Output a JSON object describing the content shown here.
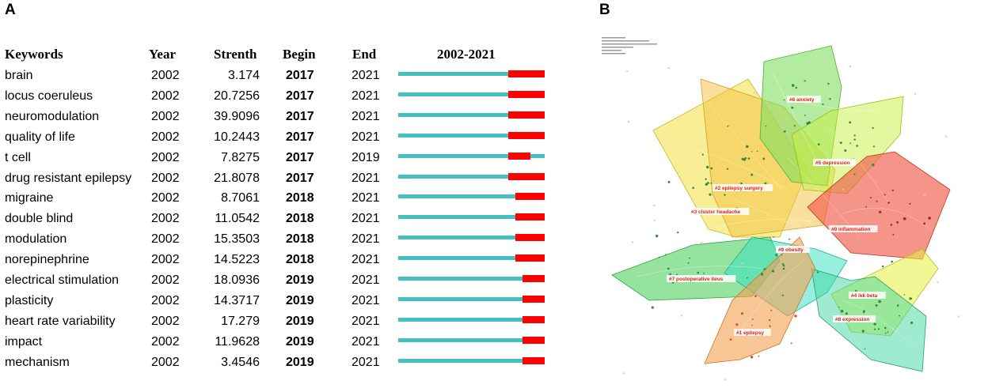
{
  "panel_a_label": "A",
  "panel_b_label": "B",
  "chart_data": [
    {
      "type": "table",
      "title": "",
      "headers": {
        "keywords": "Keywords",
        "year": "Year",
        "strength": "Strenth",
        "begin": "Begin",
        "end": "End",
        "range": "2002-2021"
      },
      "range_start": 2002,
      "range_end": 2021,
      "bar_color": "#45c0c0",
      "burst_color": "#ff0000",
      "rows": [
        {
          "keyword": "brain",
          "year": "2002",
          "strength": "3.174",
          "begin": "2017",
          "end": "2021"
        },
        {
          "keyword": "locus coeruleus",
          "year": "2002",
          "strength": "20.7256",
          "begin": "2017",
          "end": "2021"
        },
        {
          "keyword": "neuromodulation",
          "year": "2002",
          "strength": "39.9096",
          "begin": "2017",
          "end": "2021"
        },
        {
          "keyword": "quality of life",
          "year": "2002",
          "strength": "10.2443",
          "begin": "2017",
          "end": "2021"
        },
        {
          "keyword": "t cell",
          "year": "2002",
          "strength": "7.8275",
          "begin": "2017",
          "end": "2019"
        },
        {
          "keyword": "drug resistant epilepsy",
          "year": "2002",
          "strength": "21.8078",
          "begin": "2017",
          "end": "2021"
        },
        {
          "keyword": "migraine",
          "year": "2002",
          "strength": "8.7061",
          "begin": "2018",
          "end": "2021"
        },
        {
          "keyword": "double blind",
          "year": "2002",
          "strength": "11.0542",
          "begin": "2018",
          "end": "2021"
        },
        {
          "keyword": "modulation",
          "year": "2002",
          "strength": "15.3503",
          "begin": "2018",
          "end": "2021"
        },
        {
          "keyword": "norepinephrine",
          "year": "2002",
          "strength": "14.5223",
          "begin": "2018",
          "end": "2021"
        },
        {
          "keyword": "electrical stimulation",
          "year": "2002",
          "strength": "18.0936",
          "begin": "2019",
          "end": "2021"
        },
        {
          "keyword": "plasticity",
          "year": "2002",
          "strength": "14.3717",
          "begin": "2019",
          "end": "2021"
        },
        {
          "keyword": "heart rate variability",
          "year": "2002",
          "strength": "17.279",
          "begin": "2019",
          "end": "2021"
        },
        {
          "keyword": "impact",
          "year": "2002",
          "strength": "11.9628",
          "begin": "2019",
          "end": "2021"
        },
        {
          "keyword": "mechanism",
          "year": "2002",
          "strength": "3.4546",
          "begin": "2019",
          "end": "2021"
        }
      ]
    },
    {
      "type": "network",
      "title": "",
      "clusters": [
        {
          "id": "c0",
          "label": "#0 inflammation",
          "color": "#f05a4a"
        },
        {
          "id": "c1",
          "label": "#1 epilepsy",
          "color": "#f5a050"
        },
        {
          "id": "c2",
          "label": "#2 epilepsy surgery",
          "color": "#f5c040"
        },
        {
          "id": "c3",
          "label": "#3 cluster headache",
          "color": "#f0e040"
        },
        {
          "id": "c4",
          "label": "#4 ikk beta",
          "color": "#e8f040"
        },
        {
          "id": "c5",
          "label": "#5 depression",
          "color": "#c8f040"
        },
        {
          "id": "c6",
          "label": "#6 anxiety",
          "color": "#80e060"
        },
        {
          "id": "c7",
          "label": "#7 postoperative ileus",
          "color": "#50d060"
        },
        {
          "id": "c8",
          "label": "#8 expression",
          "color": "#40d8a0"
        },
        {
          "id": "c9",
          "label": "#9 obesity",
          "color": "#30e0c0"
        }
      ]
    }
  ]
}
